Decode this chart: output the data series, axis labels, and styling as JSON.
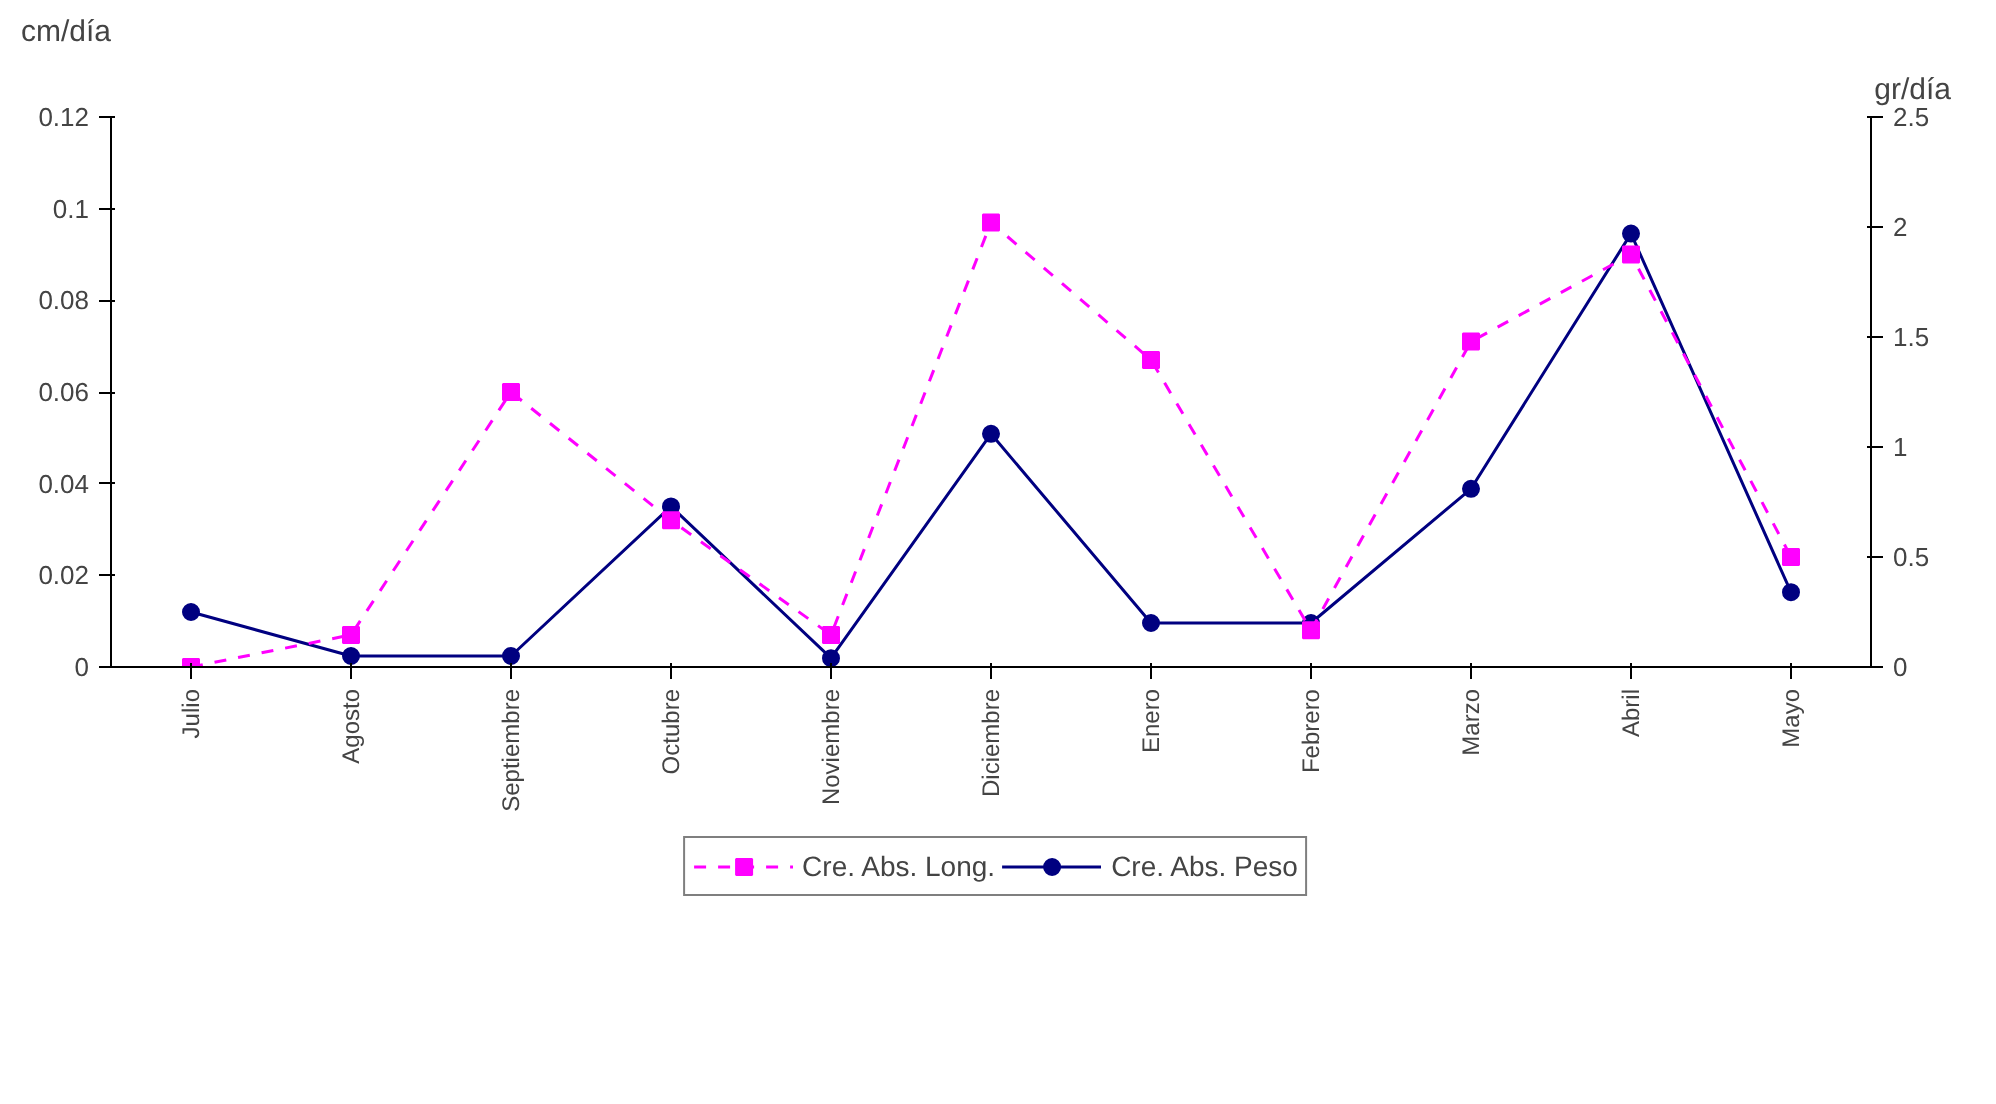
{
  "chart_data": {
    "type": "line",
    "ylabel": "cm/día",
    "y2label": "gr/día",
    "categories": [
      "Julio",
      "Agosto",
      "Septiembre",
      "Octubre",
      "Noviembre",
      "Diciembre",
      "Enero",
      "Febrero",
      "Marzo",
      "Abril",
      "Mayo"
    ],
    "series": [
      {
        "name": "Cre. Abs. Long.",
        "color": "#ff00ff",
        "line_style": "dashed",
        "marker": "square",
        "values": [
          0,
          0.007,
          0.06,
          0.032,
          0.007,
          0.097,
          0.067,
          0.008,
          0.071,
          0.09,
          0.024
        ]
      },
      {
        "name": "Cre. Abs. Peso",
        "color": "#000080",
        "line_style": "solid",
        "marker": "circle",
        "axis": "y2",
        "values": [
          0.25,
          0.05,
          0.05,
          0.73,
          0.04,
          1.06,
          0.2,
          0.2,
          0.81,
          1.97,
          0.34
        ]
      }
    ],
    "ylim": [
      0,
      0.12
    ],
    "yticks": [
      0,
      0.02,
      0.04,
      0.06,
      0.08,
      0.1,
      0.12
    ],
    "y2lim": [
      0,
      2.5
    ],
    "y2ticks": [
      0,
      0.5,
      1,
      1.5,
      2,
      2.5
    ],
    "grid": false,
    "legend": "bottom"
  }
}
